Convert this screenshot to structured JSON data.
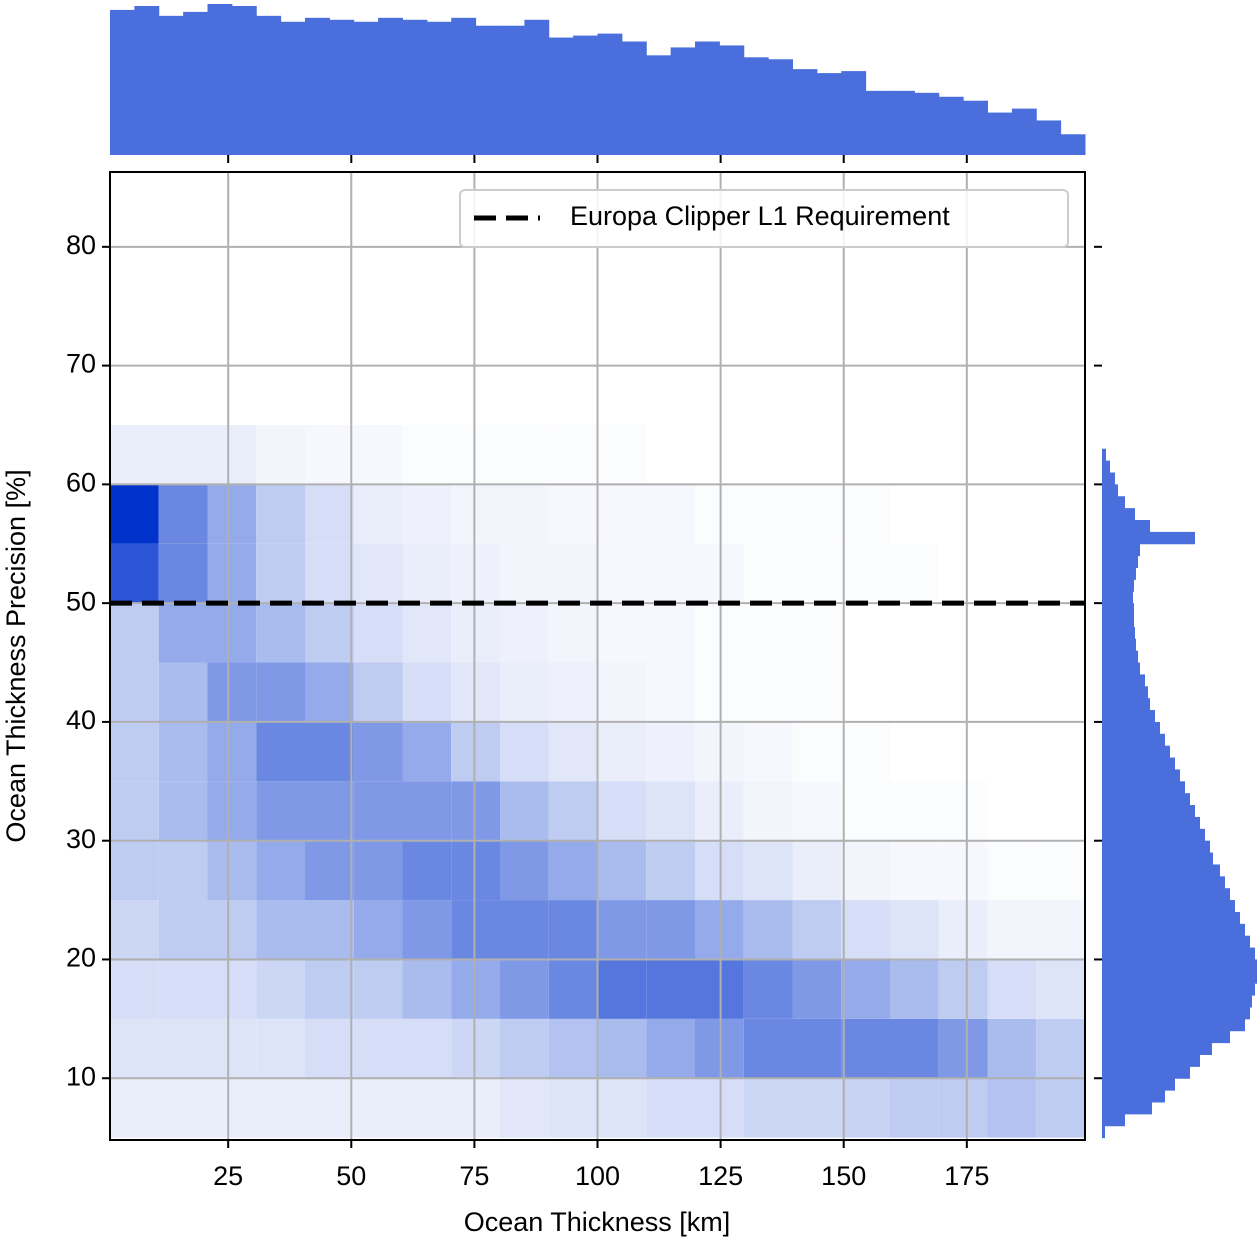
{
  "chart_data": {
    "type": "jointhist",
    "xlabel": "Ocean Thickness  [km]",
    "ylabel": "Ocean Thickness Precision [%]",
    "xlim": [
      1,
      199
    ],
    "ylim": [
      4.8,
      86.3
    ],
    "xticks": [
      25,
      50,
      75,
      100,
      125,
      150,
      175
    ],
    "yticks": [
      10,
      20,
      30,
      40,
      50,
      60,
      70,
      80
    ],
    "grid": true,
    "hline": {
      "y": 50,
      "label": "Europa Clipper L1 Requirement",
      "color": "#000000"
    },
    "legend": "upper right",
    "cmap": [
      "#ffffff",
      "#0033cc"
    ],
    "heatmap": {
      "xbins": [
        1,
        10.9,
        20.8,
        30.7,
        40.6,
        50.5,
        60.4,
        70.3,
        80.2,
        90.1,
        100,
        109.9,
        119.8,
        129.7,
        139.6,
        149.5,
        159.4,
        169.3,
        179.2,
        189.1,
        199
      ],
      "ybins": [
        5,
        10,
        15,
        20,
        25,
        30,
        35,
        40,
        45,
        50,
        55,
        60,
        65
      ],
      "values": [
        [
          0.5,
          0.5,
          0.5,
          0.5,
          0.5,
          0.5,
          0.5,
          0.5,
          0.7,
          0.8,
          0.8,
          1,
          1,
          1.2,
          1.2,
          1.3,
          1.5,
          1.5,
          1.8,
          1.5
        ],
        [
          0.8,
          0.8,
          0.8,
          0.8,
          1,
          1,
          1,
          1.2,
          1.5,
          1.8,
          2,
          2.5,
          3,
          3.5,
          3.5,
          3.5,
          3.5,
          3,
          2,
          1.5
        ],
        [
          1,
          1,
          1,
          1.2,
          1.5,
          1.5,
          2,
          2.5,
          3,
          3.5,
          4,
          4,
          4,
          3.5,
          3,
          2.5,
          2,
          1.5,
          1,
          0.8
        ],
        [
          1.2,
          1.5,
          1.5,
          2,
          2,
          2.5,
          3,
          3.5,
          3.5,
          3.5,
          3,
          3,
          2.5,
          2,
          1.5,
          1,
          0.8,
          0.5,
          0.3,
          0.3
        ],
        [
          1.5,
          1.5,
          2,
          2.5,
          3,
          3,
          3.5,
          3.5,
          3,
          2.5,
          2,
          1.5,
          1,
          0.8,
          0.5,
          0.3,
          0.2,
          0.2,
          0.1,
          0.1
        ],
        [
          1.5,
          2,
          2.5,
          3,
          3,
          3,
          3,
          3,
          2,
          1.5,
          1,
          0.8,
          0.5,
          0.3,
          0.2,
          0.1,
          0.1,
          0.1,
          0,
          0
        ],
        [
          1.5,
          2,
          2.5,
          3.5,
          3.5,
          3,
          2.5,
          1.5,
          1,
          0.7,
          0.5,
          0.4,
          0.3,
          0.2,
          0.1,
          0.1,
          0,
          0,
          0,
          0
        ],
        [
          1.5,
          2,
          3,
          3,
          2.5,
          1.5,
          1,
          0.7,
          0.5,
          0.4,
          0.3,
          0.2,
          0.1,
          0.1,
          0.1,
          0,
          0,
          0,
          0,
          0
        ],
        [
          1.5,
          2.5,
          2.5,
          2,
          1.5,
          1,
          0.7,
          0.5,
          0.4,
          0.3,
          0.2,
          0.2,
          0.1,
          0.1,
          0.1,
          0,
          0,
          0,
          0,
          0
        ],
        [
          5,
          3.5,
          2.5,
          1.5,
          1,
          0.7,
          0.5,
          0.4,
          0.3,
          0.3,
          0.2,
          0.2,
          0.2,
          0.1,
          0.1,
          0.1,
          0.1,
          0,
          0,
          0
        ],
        [
          6,
          3.5,
          2.5,
          1.5,
          1,
          0.5,
          0.4,
          0.3,
          0.3,
          0.2,
          0.2,
          0.2,
          0.1,
          0.1,
          0.1,
          0.1,
          0,
          0,
          0,
          0
        ],
        [
          0.5,
          0.5,
          0.5,
          0.3,
          0.2,
          0.2,
          0.1,
          0.1,
          0.1,
          0.1,
          0.1,
          0,
          0,
          0,
          0,
          0,
          0,
          0,
          0,
          0
        ]
      ]
    },
    "top_hist": {
      "color": "#4a6fdc",
      "bins": [
        1,
        5.95,
        10.9,
        15.85,
        20.8,
        25.75,
        30.7,
        35.65,
        40.6,
        45.55,
        50.5,
        55.45,
        60.4,
        65.35,
        70.3,
        75.25,
        80.2,
        85.15,
        90.1,
        95.05,
        100,
        104.95,
        109.9,
        114.85,
        119.8,
        124.75,
        129.7,
        134.65,
        139.6,
        144.55,
        149.5,
        154.45,
        159.4,
        164.35,
        169.3,
        174.25,
        179.2,
        184.15,
        189.1,
        194.05,
        199
      ],
      "counts": [
        147,
        151,
        141,
        145,
        153,
        151,
        141,
        135,
        139,
        137,
        135,
        139,
        137,
        135,
        139,
        131,
        131,
        137,
        119,
        121,
        123,
        115,
        101,
        109,
        115,
        111,
        99,
        97,
        87,
        83,
        85,
        65,
        65,
        63,
        59,
        55,
        43,
        47,
        35,
        21
      ]
    },
    "right_hist": {
      "color": "#4a6fdc",
      "bins": [
        5,
        6,
        7,
        8,
        9,
        10,
        11,
        12,
        13,
        14,
        15,
        16,
        17,
        18,
        19,
        20,
        21,
        22,
        23,
        24,
        25,
        26,
        27,
        28,
        29,
        30,
        31,
        32,
        33,
        34,
        35,
        36,
        37,
        38,
        39,
        40,
        41,
        42,
        43,
        44,
        45,
        46,
        47,
        48,
        49,
        50,
        51,
        52,
        53,
        54,
        55,
        56,
        57,
        58,
        59,
        60,
        61,
        62,
        63
      ],
      "counts": [
        3,
        23,
        50,
        63,
        73,
        88,
        98,
        110,
        128,
        143,
        148,
        150,
        153,
        155,
        155,
        153,
        148,
        143,
        138,
        133,
        128,
        123,
        118,
        111,
        108,
        103,
        98,
        93,
        88,
        83,
        78,
        73,
        68,
        63,
        58,
        53,
        48,
        46,
        43,
        38,
        36,
        34,
        33,
        32,
        32,
        31,
        32,
        34,
        36,
        38,
        93,
        48,
        33,
        23,
        16,
        13,
        8,
        4
      ]
    }
  }
}
